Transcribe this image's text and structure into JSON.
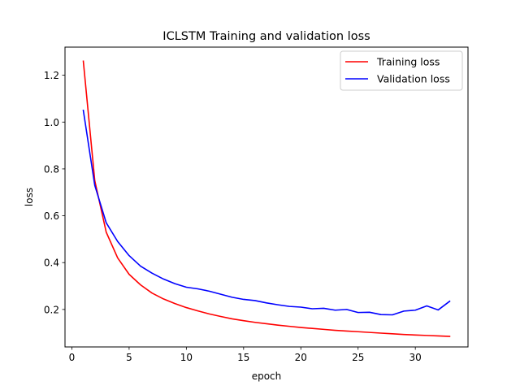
{
  "chart_data": {
    "type": "line",
    "title": "ICLSTM Training and validation loss",
    "xlabel": "epoch",
    "ylabel": "loss",
    "xlim": [
      -0.6,
      34.6
    ],
    "ylim": [
      0.04,
      1.32
    ],
    "xticks": [
      0,
      5,
      10,
      15,
      20,
      25,
      30
    ],
    "yticks": [
      0.2,
      0.4,
      0.6,
      0.8,
      1.0,
      1.2
    ],
    "xtick_labels": [
      "0",
      "5",
      "10",
      "15",
      "20",
      "25",
      "30"
    ],
    "ytick_labels": [
      "0.2",
      "0.4",
      "0.6",
      "0.8",
      "1.0",
      "1.2"
    ],
    "grid": false,
    "legend_position": "top-right",
    "x": [
      1,
      2,
      3,
      4,
      5,
      6,
      7,
      8,
      9,
      10,
      11,
      12,
      13,
      14,
      15,
      16,
      17,
      18,
      19,
      20,
      21,
      22,
      23,
      24,
      25,
      26,
      27,
      28,
      29,
      30,
      31,
      32,
      33
    ],
    "series": [
      {
        "name": "Training loss",
        "color": "#ff0000",
        "values": [
          1.26,
          0.75,
          0.53,
          0.42,
          0.35,
          0.305,
          0.27,
          0.245,
          0.225,
          0.208,
          0.194,
          0.181,
          0.17,
          0.16,
          0.152,
          0.145,
          0.139,
          0.133,
          0.128,
          0.123,
          0.119,
          0.115,
          0.111,
          0.108,
          0.105,
          0.102,
          0.099,
          0.096,
          0.093,
          0.091,
          0.089,
          0.087,
          0.085
        ]
      },
      {
        "name": "Validation loss",
        "color": "#0000ff",
        "values": [
          1.05,
          0.73,
          0.57,
          0.49,
          0.43,
          0.385,
          0.355,
          0.33,
          0.31,
          0.295,
          0.288,
          0.278,
          0.265,
          0.252,
          0.243,
          0.238,
          0.228,
          0.22,
          0.213,
          0.21,
          0.203,
          0.205,
          0.197,
          0.2,
          0.187,
          0.188,
          0.178,
          0.177,
          0.193,
          0.197,
          0.215,
          0.198,
          0.235
        ]
      }
    ]
  }
}
